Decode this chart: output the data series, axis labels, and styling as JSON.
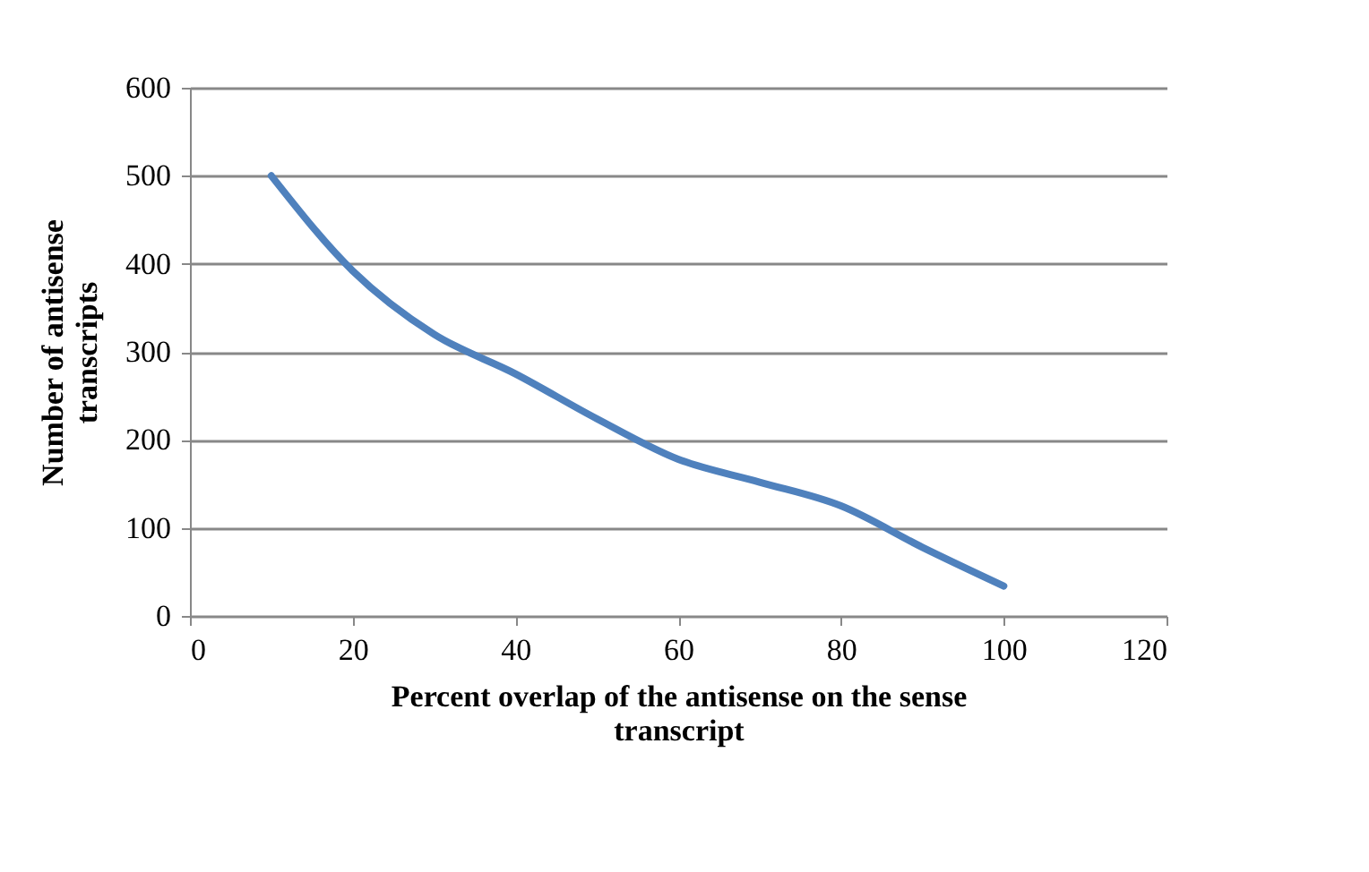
{
  "chart_data": {
    "type": "line",
    "xlabel": "Percent overlap of the antisense on the sense transcript",
    "ylabel": "Number of antisense transcripts",
    "x": [
      10,
      20,
      30,
      40,
      50,
      60,
      70,
      80,
      90,
      100
    ],
    "series": [
      {
        "color": "#4f81bd",
        "values": [
          500,
          392,
          320,
          275,
          224,
          178,
          152,
          125,
          78,
          34
        ]
      }
    ],
    "xlim": [
      0,
      120
    ],
    "xticks": [
      0,
      20,
      40,
      60,
      80,
      100,
      120
    ],
    "ylim": [
      0,
      600
    ],
    "yticks": [
      0,
      100,
      200,
      300,
      400,
      500,
      600
    ],
    "grid": "y",
    "marker": "none",
    "line_style": "solid"
  }
}
